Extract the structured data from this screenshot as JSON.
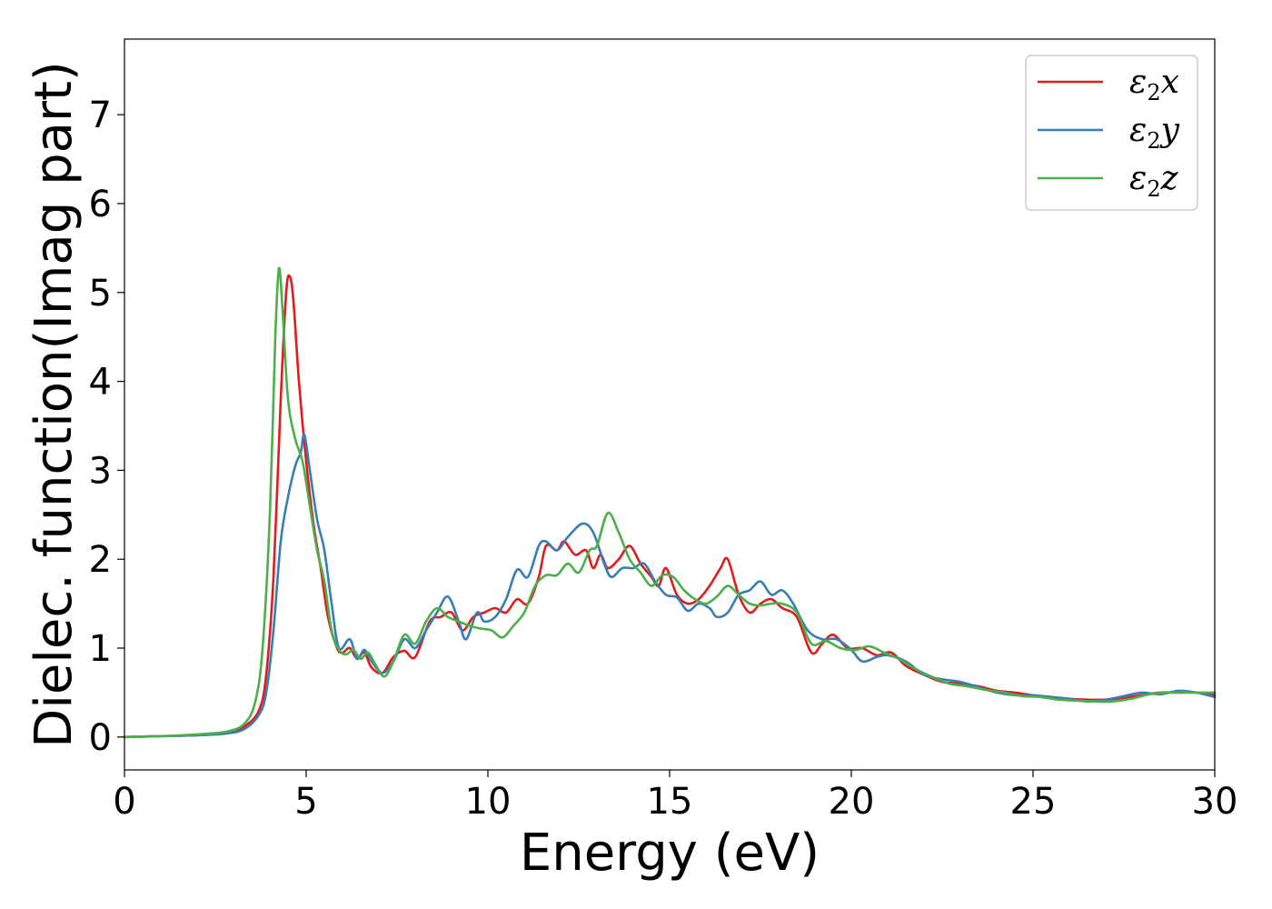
{
  "chart_data": {
    "type": "line",
    "xlabel": "Energy (eV)",
    "ylabel": "Dielec. function(Imag part)",
    "xlim": [
      0,
      30
    ],
    "ylim": [
      -0.37,
      7.85
    ],
    "xticks": [
      0,
      5,
      10,
      15,
      20,
      25,
      30
    ],
    "yticks": [
      0,
      1,
      2,
      3,
      4,
      5,
      6,
      7
    ],
    "grid": false,
    "legend_position": "top-right",
    "series": [
      {
        "name": "x",
        "legend_base": "ε",
        "legend_sub": "2",
        "legend_var": "x",
        "color": "#e41a1c",
        "points": [
          [
            0,
            0
          ],
          [
            1,
            0.01
          ],
          [
            2,
            0.02
          ],
          [
            2.8,
            0.05
          ],
          [
            3.3,
            0.12
          ],
          [
            3.7,
            0.3
          ],
          [
            3.9,
            0.7
          ],
          [
            4.1,
            1.8
          ],
          [
            4.3,
            3.8
          ],
          [
            4.45,
            5.0
          ],
          [
            4.55,
            5.18
          ],
          [
            4.65,
            4.9
          ],
          [
            4.8,
            4.0
          ],
          [
            5.0,
            3.1
          ],
          [
            5.2,
            2.4
          ],
          [
            5.4,
            1.9
          ],
          [
            5.6,
            1.35
          ],
          [
            5.85,
            1.0
          ],
          [
            6.0,
            0.95
          ],
          [
            6.2,
            1.0
          ],
          [
            6.4,
            0.88
          ],
          [
            6.6,
            0.95
          ],
          [
            6.8,
            0.78
          ],
          [
            7.1,
            0.72
          ],
          [
            7.4,
            0.9
          ],
          [
            7.7,
            0.97
          ],
          [
            8.0,
            0.9
          ],
          [
            8.4,
            1.3
          ],
          [
            8.7,
            1.35
          ],
          [
            9.0,
            1.4
          ],
          [
            9.3,
            1.2
          ],
          [
            9.6,
            1.35
          ],
          [
            9.9,
            1.4
          ],
          [
            10.2,
            1.45
          ],
          [
            10.5,
            1.4
          ],
          [
            10.8,
            1.55
          ],
          [
            11.1,
            1.5
          ],
          [
            11.4,
            1.8
          ],
          [
            11.6,
            2.15
          ],
          [
            11.9,
            2.1
          ],
          [
            12.1,
            2.2
          ],
          [
            12.4,
            2.05
          ],
          [
            12.7,
            2.1
          ],
          [
            12.9,
            1.9
          ],
          [
            13.1,
            2.05
          ],
          [
            13.3,
            1.9
          ],
          [
            13.6,
            2.0
          ],
          [
            13.9,
            2.15
          ],
          [
            14.2,
            1.95
          ],
          [
            14.5,
            1.8
          ],
          [
            14.7,
            1.7
          ],
          [
            14.9,
            1.9
          ],
          [
            15.2,
            1.6
          ],
          [
            15.5,
            1.5
          ],
          [
            15.8,
            1.55
          ],
          [
            16.1,
            1.7
          ],
          [
            16.4,
            1.9
          ],
          [
            16.6,
            2.0
          ],
          [
            16.9,
            1.6
          ],
          [
            17.2,
            1.4
          ],
          [
            17.5,
            1.5
          ],
          [
            17.8,
            1.55
          ],
          [
            18.1,
            1.45
          ],
          [
            18.5,
            1.35
          ],
          [
            18.9,
            0.95
          ],
          [
            19.2,
            1.05
          ],
          [
            19.5,
            1.15
          ],
          [
            19.9,
            1.0
          ],
          [
            20.3,
            1.0
          ],
          [
            20.7,
            0.92
          ],
          [
            21.1,
            0.95
          ],
          [
            21.5,
            0.8
          ],
          [
            22.0,
            0.7
          ],
          [
            22.5,
            0.62
          ],
          [
            23.0,
            0.6
          ],
          [
            23.5,
            0.57
          ],
          [
            24.0,
            0.52
          ],
          [
            24.5,
            0.5
          ],
          [
            25.0,
            0.47
          ],
          [
            25.5,
            0.45
          ],
          [
            26.0,
            0.43
          ],
          [
            26.5,
            0.42
          ],
          [
            27.0,
            0.42
          ],
          [
            27.5,
            0.44
          ],
          [
            28.0,
            0.47
          ],
          [
            28.5,
            0.5
          ],
          [
            29.0,
            0.5
          ],
          [
            29.5,
            0.5
          ],
          [
            30.0,
            0.47
          ]
        ]
      },
      {
        "name": "y",
        "legend_base": "ε",
        "legend_sub": "2",
        "legend_var": "y",
        "color": "#377eb8",
        "points": [
          [
            0,
            0
          ],
          [
            1,
            0.01
          ],
          [
            2,
            0.02
          ],
          [
            2.8,
            0.04
          ],
          [
            3.3,
            0.09
          ],
          [
            3.7,
            0.25
          ],
          [
            3.9,
            0.5
          ],
          [
            4.1,
            1.2
          ],
          [
            4.3,
            2.2
          ],
          [
            4.5,
            2.7
          ],
          [
            4.7,
            3.05
          ],
          [
            4.85,
            3.2
          ],
          [
            4.95,
            3.4
          ],
          [
            5.1,
            3.0
          ],
          [
            5.3,
            2.45
          ],
          [
            5.5,
            2.1
          ],
          [
            5.7,
            1.5
          ],
          [
            5.9,
            1.0
          ],
          [
            6.2,
            1.1
          ],
          [
            6.4,
            0.88
          ],
          [
            6.6,
            0.98
          ],
          [
            6.8,
            0.85
          ],
          [
            7.1,
            0.72
          ],
          [
            7.4,
            0.85
          ],
          [
            7.7,
            1.1
          ],
          [
            8.0,
            1.0
          ],
          [
            8.3,
            1.2
          ],
          [
            8.6,
            1.4
          ],
          [
            8.9,
            1.58
          ],
          [
            9.2,
            1.3
          ],
          [
            9.4,
            1.1
          ],
          [
            9.7,
            1.4
          ],
          [
            9.9,
            1.3
          ],
          [
            10.2,
            1.35
          ],
          [
            10.5,
            1.55
          ],
          [
            10.8,
            1.88
          ],
          [
            11.1,
            1.8
          ],
          [
            11.4,
            2.15
          ],
          [
            11.6,
            2.2
          ],
          [
            11.9,
            2.1
          ],
          [
            12.2,
            2.25
          ],
          [
            12.6,
            2.4
          ],
          [
            12.9,
            2.3
          ],
          [
            13.2,
            1.95
          ],
          [
            13.4,
            1.8
          ],
          [
            13.7,
            1.9
          ],
          [
            14.0,
            1.9
          ],
          [
            14.3,
            1.95
          ],
          [
            14.6,
            1.75
          ],
          [
            14.9,
            1.6
          ],
          [
            15.2,
            1.57
          ],
          [
            15.5,
            1.42
          ],
          [
            15.8,
            1.5
          ],
          [
            16.1,
            1.45
          ],
          [
            16.3,
            1.35
          ],
          [
            16.6,
            1.4
          ],
          [
            16.9,
            1.6
          ],
          [
            17.2,
            1.65
          ],
          [
            17.5,
            1.75
          ],
          [
            17.8,
            1.6
          ],
          [
            18.1,
            1.65
          ],
          [
            18.4,
            1.5
          ],
          [
            18.8,
            1.2
          ],
          [
            19.2,
            1.1
          ],
          [
            19.6,
            1.1
          ],
          [
            20.0,
            0.98
          ],
          [
            20.3,
            0.85
          ],
          [
            20.7,
            0.9
          ],
          [
            21.0,
            0.92
          ],
          [
            21.5,
            0.85
          ],
          [
            22.0,
            0.7
          ],
          [
            22.5,
            0.65
          ],
          [
            23.0,
            0.62
          ],
          [
            23.5,
            0.56
          ],
          [
            24.0,
            0.5
          ],
          [
            24.5,
            0.47
          ],
          [
            25.0,
            0.47
          ],
          [
            25.5,
            0.45
          ],
          [
            26.0,
            0.43
          ],
          [
            26.5,
            0.4
          ],
          [
            27.0,
            0.42
          ],
          [
            27.5,
            0.46
          ],
          [
            28.0,
            0.5
          ],
          [
            28.5,
            0.48
          ],
          [
            29.0,
            0.52
          ],
          [
            29.5,
            0.5
          ],
          [
            30.0,
            0.45
          ]
        ]
      },
      {
        "name": "z",
        "legend_base": "ε",
        "legend_sub": "2",
        "legend_var": "z",
        "color": "#4daf4a",
        "points": [
          [
            0,
            0
          ],
          [
            1,
            0.01
          ],
          [
            2,
            0.03
          ],
          [
            2.8,
            0.06
          ],
          [
            3.3,
            0.15
          ],
          [
            3.6,
            0.4
          ],
          [
            3.8,
            1.0
          ],
          [
            4.0,
            2.5
          ],
          [
            4.15,
            4.5
          ],
          [
            4.25,
            5.27
          ],
          [
            4.35,
            4.8
          ],
          [
            4.5,
            3.8
          ],
          [
            4.7,
            3.35
          ],
          [
            4.9,
            3.1
          ],
          [
            5.1,
            2.6
          ],
          [
            5.3,
            2.1
          ],
          [
            5.5,
            1.75
          ],
          [
            5.7,
            1.2
          ],
          [
            5.9,
            0.98
          ],
          [
            6.1,
            0.93
          ],
          [
            6.3,
            0.98
          ],
          [
            6.5,
            0.88
          ],
          [
            6.7,
            0.95
          ],
          [
            6.9,
            0.82
          ],
          [
            7.15,
            0.68
          ],
          [
            7.4,
            0.85
          ],
          [
            7.7,
            1.15
          ],
          [
            8.0,
            1.05
          ],
          [
            8.3,
            1.3
          ],
          [
            8.6,
            1.45
          ],
          [
            8.9,
            1.35
          ],
          [
            9.2,
            1.3
          ],
          [
            9.5,
            1.25
          ],
          [
            9.8,
            1.22
          ],
          [
            10.1,
            1.2
          ],
          [
            10.4,
            1.12
          ],
          [
            10.7,
            1.25
          ],
          [
            11.0,
            1.4
          ],
          [
            11.3,
            1.7
          ],
          [
            11.6,
            1.82
          ],
          [
            11.9,
            1.82
          ],
          [
            12.2,
            1.95
          ],
          [
            12.5,
            1.85
          ],
          [
            12.8,
            2.1
          ],
          [
            13.0,
            2.15
          ],
          [
            13.3,
            2.52
          ],
          [
            13.6,
            2.3
          ],
          [
            13.9,
            2.0
          ],
          [
            14.2,
            1.85
          ],
          [
            14.5,
            1.7
          ],
          [
            14.8,
            1.82
          ],
          [
            15.1,
            1.8
          ],
          [
            15.4,
            1.65
          ],
          [
            15.7,
            1.55
          ],
          [
            16.0,
            1.5
          ],
          [
            16.3,
            1.58
          ],
          [
            16.6,
            1.7
          ],
          [
            16.9,
            1.6
          ],
          [
            17.2,
            1.5
          ],
          [
            17.5,
            1.48
          ],
          [
            17.8,
            1.5
          ],
          [
            18.1,
            1.5
          ],
          [
            18.5,
            1.4
          ],
          [
            18.9,
            1.05
          ],
          [
            19.3,
            1.08
          ],
          [
            19.7,
            1.0
          ],
          [
            20.1,
            0.98
          ],
          [
            20.5,
            1.02
          ],
          [
            20.9,
            0.95
          ],
          [
            21.3,
            0.88
          ],
          [
            21.7,
            0.78
          ],
          [
            22.2,
            0.68
          ],
          [
            22.7,
            0.6
          ],
          [
            23.2,
            0.57
          ],
          [
            23.7,
            0.53
          ],
          [
            24.2,
            0.5
          ],
          [
            24.7,
            0.46
          ],
          [
            25.2,
            0.45
          ],
          [
            25.7,
            0.42
          ],
          [
            26.2,
            0.41
          ],
          [
            26.7,
            0.4
          ],
          [
            27.2,
            0.4
          ],
          [
            27.7,
            0.43
          ],
          [
            28.2,
            0.48
          ],
          [
            28.7,
            0.5
          ],
          [
            29.2,
            0.5
          ],
          [
            29.6,
            0.5
          ],
          [
            30.0,
            0.5
          ]
        ]
      }
    ]
  }
}
